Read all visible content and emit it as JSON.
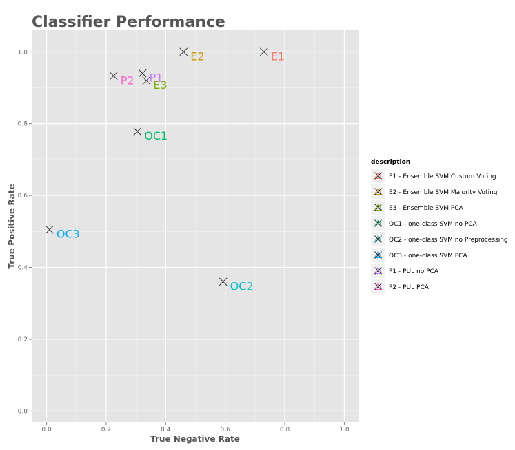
{
  "chart_data": {
    "type": "scatter",
    "title": "Classifier Performance",
    "xlabel": "True Negative Rate",
    "ylabel": "True Positive Rate",
    "xlim": [
      -0.05,
      1.05
    ],
    "ylim": [
      -0.03,
      1.06
    ],
    "x_ticks": [
      0.0,
      0.2,
      0.4,
      0.6,
      0.8,
      1.0
    ],
    "x_tick_labels": [
      "0.0",
      "0.2",
      "0.4",
      "0.6",
      "0.8",
      "1.0"
    ],
    "y_ticks": [
      0.0,
      0.2,
      0.4,
      0.6,
      0.8,
      1.0
    ],
    "y_tick_labels": [
      "0.0",
      "0.2",
      "0.4",
      "0.6",
      "0.8",
      "1.0"
    ],
    "grid": true,
    "marker": "x",
    "marker_color": "#333333",
    "panel_color": "#e5e5e5",
    "legend_title": "description",
    "legend_position": "right",
    "points": [
      {
        "label": "E1",
        "description": "E1 - Ensemble SVM Custom Voting",
        "x": 0.73,
        "y": 1.0,
        "color": "#F8766D"
      },
      {
        "label": "E2",
        "description": "E2 - Ensemble SVM Majority Voting",
        "x": 0.46,
        "y": 1.0,
        "color": "#CD9600"
      },
      {
        "label": "E3",
        "description": "E3 - Ensemble SVM PCA",
        "x": 0.335,
        "y": 0.92,
        "color": "#7CAE00"
      },
      {
        "label": "OC1",
        "description": "OC1 - one-class SVM no PCA",
        "x": 0.305,
        "y": 0.778,
        "color": "#00BE67"
      },
      {
        "label": "OC2",
        "description": "OC2 - one-class SVM no Preprocessing",
        "x": 0.593,
        "y": 0.36,
        "color": "#00BFC4"
      },
      {
        "label": "OC3",
        "description": "OC3 - one-class SVM PCA",
        "x": 0.01,
        "y": 0.505,
        "color": "#00A9FF"
      },
      {
        "label": "P1",
        "description": "P1 - PUL no PCA",
        "x": 0.322,
        "y": 0.94,
        "color": "#C77CFF"
      },
      {
        "label": "P2",
        "description": "P2 - PUL PCA",
        "x": 0.225,
        "y": 0.933,
        "color": "#FF61CC"
      }
    ]
  }
}
